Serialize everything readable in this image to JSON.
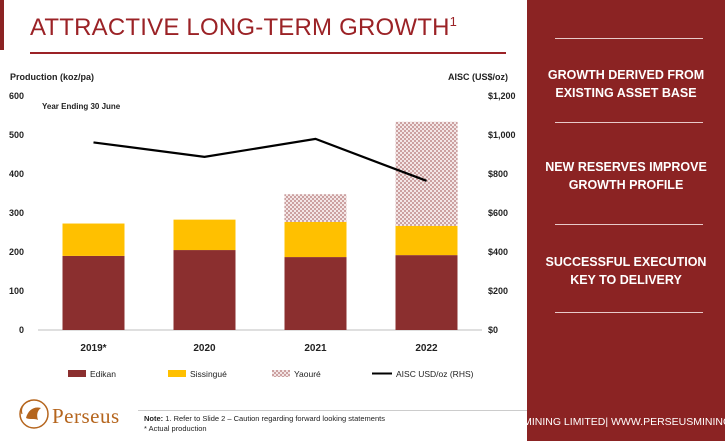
{
  "slide": {
    "title": "ATTRACTIVE LONG-TERM GROWTH",
    "title_superscript": "1"
  },
  "right_panel": {
    "items": [
      "GROWTH DERIVED FROM EXISTING ASSET BASE",
      "NEW RESERVES IMPROVE GROWTH PROFILE",
      "SUCCESSFUL EXECUTION KEY TO DELIVERY"
    ]
  },
  "footer": {
    "company": "PERSEUS MINING LIMITED| WWW.PERSEUSMINING.COM",
    "note_label": "Note:",
    "note_line1": " 1. Refer to Slide 2 – Caution regarding forward looking statements",
    "note_line2": "* Actual  production",
    "logo_text": "Perseus"
  },
  "colors": {
    "edikan": "#8b2f2f",
    "sissingue": "#ffc000",
    "yaoure": "#d9b5b5",
    "line": "#000000",
    "brand": "#8b2323"
  },
  "chart_data": {
    "type": "bar",
    "stacked": true,
    "annotation": "Year Ending 30 June",
    "categories": [
      "2019*",
      "2020",
      "2021",
      "2022"
    ],
    "ylabel_left": "Production (koz/pa)",
    "ylabel_right": "AISC (US$/oz)",
    "ylim_left": [
      0,
      600
    ],
    "ylim_right": [
      0,
      1200
    ],
    "yticks_left": [
      "0",
      "100",
      "200",
      "300",
      "400",
      "500",
      "600"
    ],
    "yticks_right": [
      "$0",
      "$200",
      "$400",
      "$600",
      "$800",
      "$1,000",
      "$1,200"
    ],
    "series": [
      {
        "name": "Edikan",
        "values": [
          190,
          205,
          187,
          192
        ]
      },
      {
        "name": "Sissingué",
        "values": [
          83,
          78,
          90,
          75
        ]
      },
      {
        "name": "Yaouré",
        "values": [
          0,
          0,
          71,
          267
        ]
      }
    ],
    "line_series": {
      "name": "AISC USD/oz (RHS)",
      "values": [
        962,
        888,
        980,
        765
      ]
    },
    "grid": false,
    "legend_position": "bottom"
  }
}
